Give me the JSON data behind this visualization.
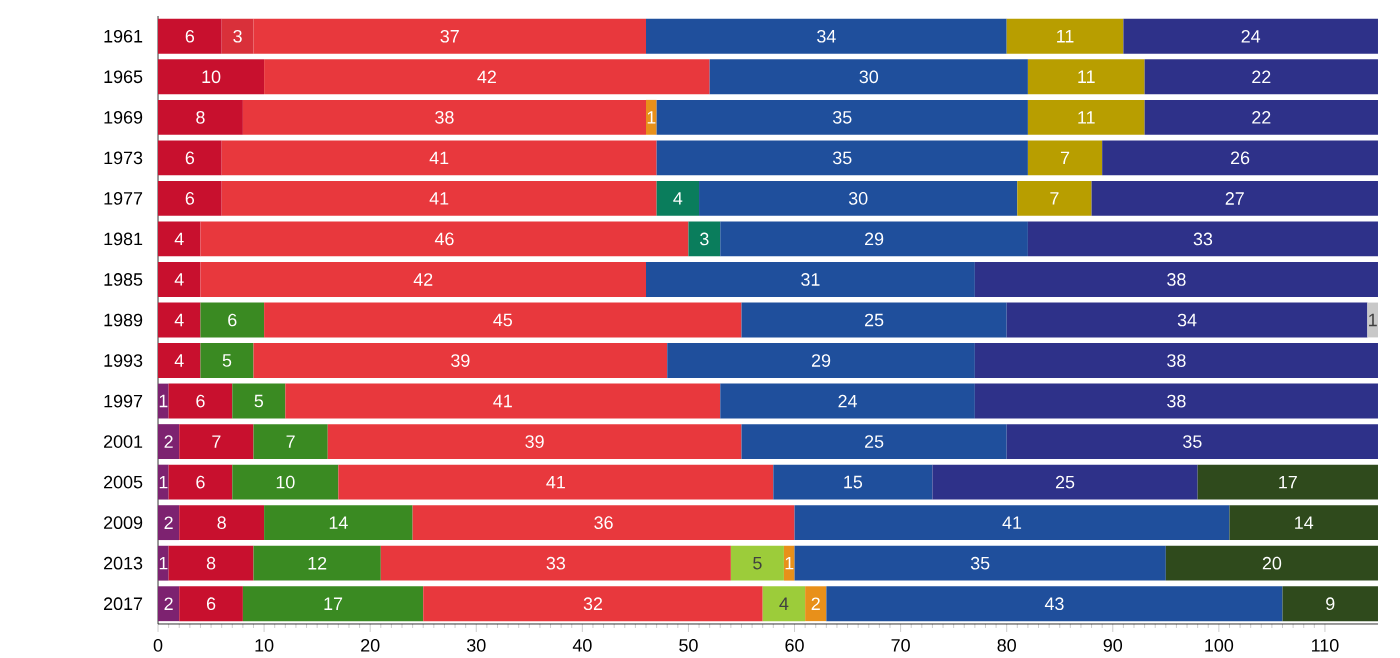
{
  "chart_data": {
    "type": "bar",
    "orientation": "horizontal",
    "stacked": true,
    "data_labels": true,
    "categories": [
      "1961",
      "1965",
      "1969",
      "1973",
      "1977",
      "1981",
      "1985",
      "1989",
      "1993",
      "1997",
      "2001",
      "2005",
      "2009",
      "2013",
      "2017"
    ],
    "series": [
      {
        "color": "#7d2270",
        "values": [
          null,
          null,
          null,
          null,
          null,
          null,
          null,
          null,
          null,
          1,
          2,
          1,
          2,
          1,
          2
        ]
      },
      {
        "color": "#c8102e",
        "values": [
          6,
          10,
          8,
          6,
          6,
          4,
          4,
          4,
          4,
          6,
          7,
          6,
          8,
          8,
          6
        ]
      },
      {
        "color": "#d9303a",
        "values": [
          3,
          null,
          null,
          null,
          null,
          null,
          null,
          null,
          null,
          null,
          null,
          null,
          null,
          null,
          null
        ]
      },
      {
        "color": "#3a8a22",
        "values": [
          null,
          null,
          null,
          null,
          null,
          null,
          null,
          6,
          5,
          5,
          7,
          10,
          14,
          12,
          17
        ]
      },
      {
        "color": "#e8383d",
        "values": [
          37,
          42,
          38,
          41,
          41,
          46,
          42,
          45,
          39,
          41,
          39,
          41,
          36,
          33,
          32
        ]
      },
      {
        "color": "#9ccc3a",
        "values": [
          null,
          null,
          null,
          null,
          null,
          null,
          null,
          null,
          null,
          null,
          null,
          null,
          null,
          5,
          4
        ]
      },
      {
        "color": "#e8901a",
        "values": [
          null,
          null,
          1,
          null,
          null,
          null,
          null,
          null,
          null,
          null,
          null,
          null,
          null,
          1,
          2
        ]
      },
      {
        "color": "#0a7d5c",
        "values": [
          null,
          null,
          null,
          null,
          4,
          3,
          null,
          null,
          null,
          null,
          null,
          null,
          null,
          null,
          null
        ]
      },
      {
        "color": "#1f4f9c",
        "values": [
          34,
          30,
          35,
          35,
          30,
          29,
          31,
          25,
          29,
          24,
          25,
          15,
          41,
          35,
          43
        ]
      },
      {
        "color": "#b89e00",
        "values": [
          11,
          11,
          11,
          7,
          7,
          null,
          null,
          null,
          null,
          null,
          null,
          null,
          null,
          null,
          null
        ]
      },
      {
        "color": "#2e3189",
        "values": [
          24,
          22,
          22,
          26,
          27,
          33,
          38,
          34,
          38,
          38,
          35,
          25,
          null,
          null,
          null
        ]
      },
      {
        "color": "#c8c8c8",
        "values": [
          null,
          null,
          null,
          null,
          null,
          null,
          null,
          1,
          null,
          null,
          null,
          null,
          null,
          null,
          null
        ]
      },
      {
        "color": "#2f4a1c",
        "values": [
          null,
          null,
          null,
          null,
          null,
          null,
          null,
          null,
          null,
          null,
          null,
          17,
          14,
          20,
          9
        ]
      }
    ],
    "xlim": [
      0,
      115
    ],
    "xticks": [
      0,
      10,
      20,
      30,
      40,
      50,
      60,
      70,
      80,
      90,
      100,
      110
    ]
  }
}
